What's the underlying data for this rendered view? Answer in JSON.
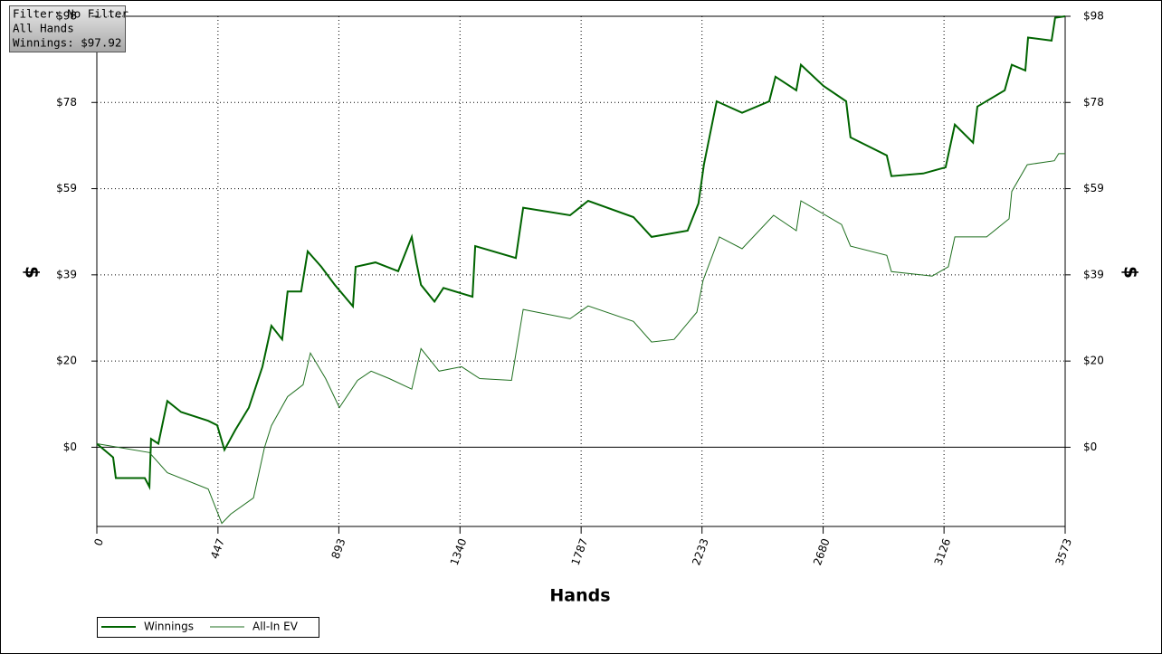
{
  "chart_data": {
    "type": "line",
    "annotations": [
      "Filter: No Filter",
      "All Hands",
      "Winnings: $97.92"
    ],
    "x_label": "Hands",
    "y_label": "$",
    "xlim": [
      0,
      3573
    ],
    "xticks": [
      0,
      447,
      893,
      1340,
      1787,
      2233,
      2680,
      3126,
      3573
    ],
    "ylim": [
      -18,
      97.92
    ],
    "yticks": [
      {
        "value": 0,
        "label": "$0"
      },
      {
        "value": 19.58,
        "label": "$20"
      },
      {
        "value": 39.17,
        "label": "$39"
      },
      {
        "value": 58.75,
        "label": "$59"
      },
      {
        "value": 78.34,
        "label": "$78"
      },
      {
        "value": 97.92,
        "label": "$98"
      }
    ],
    "grid": true,
    "legend": "bottom-left",
    "series": [
      {
        "name": "Winnings",
        "color": "#006400",
        "width": 2,
        "x": [
          0,
          60,
          70,
          177,
          194,
          200,
          227,
          260,
          311,
          411,
          444,
          471,
          511,
          561,
          611,
          644,
          684,
          704,
          754,
          778,
          828,
          878,
          945,
          955,
          1028,
          1112,
          1162,
          1179,
          1196,
          1246,
          1279,
          1386,
          1396,
          1546,
          1573,
          1746,
          1813,
          1980,
          2047,
          2180,
          2220,
          2240,
          2287,
          2381,
          2481,
          2504,
          2581,
          2598,
          2681,
          2765,
          2781,
          2915,
          2932,
          3049,
          3132,
          3166,
          3233,
          3249,
          3350,
          3376,
          3426,
          3436,
          3523,
          3536,
          3573
        ],
        "values": [
          0.8,
          -2.3,
          -7,
          -7,
          -9,
          1.9,
          0.8,
          10.5,
          8,
          6,
          5,
          -0.6,
          3.9,
          9,
          18.3,
          27.6,
          24.5,
          35.4,
          35.4,
          44.5,
          41,
          36.9,
          32,
          41,
          42,
          40,
          47.8,
          42,
          36.9,
          33.1,
          36.2,
          34.2,
          45.7,
          43,
          54.4,
          52.7,
          56,
          52.3,
          47.8,
          49.2,
          55.4,
          64.2,
          78.6,
          76,
          78.6,
          84.2,
          81.1,
          86.9,
          82.1,
          78.6,
          70.4,
          66.3,
          61.6,
          62.2,
          63.6,
          73.3,
          69.2,
          77.4,
          81.1,
          86.9,
          85.6,
          93.1,
          92.4,
          97.6,
          97.92
        ]
      },
      {
        "name": "All-In EV",
        "color": "#1f6f1f",
        "width": 1,
        "x": [
          0,
          194,
          260,
          411,
          461,
          494,
          578,
          618,
          644,
          704,
          761,
          788,
          844,
          895,
          962,
          1012,
          1079,
          1162,
          1196,
          1263,
          1346,
          1413,
          1530,
          1573,
          1746,
          1813,
          1980,
          2047,
          2130,
          2214,
          2237,
          2297,
          2381,
          2497,
          2581,
          2598,
          2748,
          2781,
          2915,
          2932,
          3082,
          3142,
          3166,
          3283,
          3366,
          3376,
          3433,
          3533,
          3549,
          3573
        ],
        "values": [
          0.8,
          -1.2,
          -5.8,
          -9.5,
          -17.3,
          -15.2,
          -11.5,
          -0.2,
          4.9,
          11.5,
          14.2,
          21.4,
          15.6,
          9,
          15.2,
          17.3,
          15.6,
          13.2,
          22.4,
          17.3,
          18.3,
          15.6,
          15.2,
          31.3,
          29.2,
          32.1,
          28.6,
          23.9,
          24.5,
          30.7,
          37.9,
          47.8,
          45.1,
          52.7,
          49.2,
          56,
          50.6,
          45.7,
          43.6,
          39.9,
          38.9,
          41,
          47.8,
          47.8,
          51.9,
          58.1,
          64.2,
          65.1,
          66.7,
          66.7
        ]
      }
    ]
  }
}
